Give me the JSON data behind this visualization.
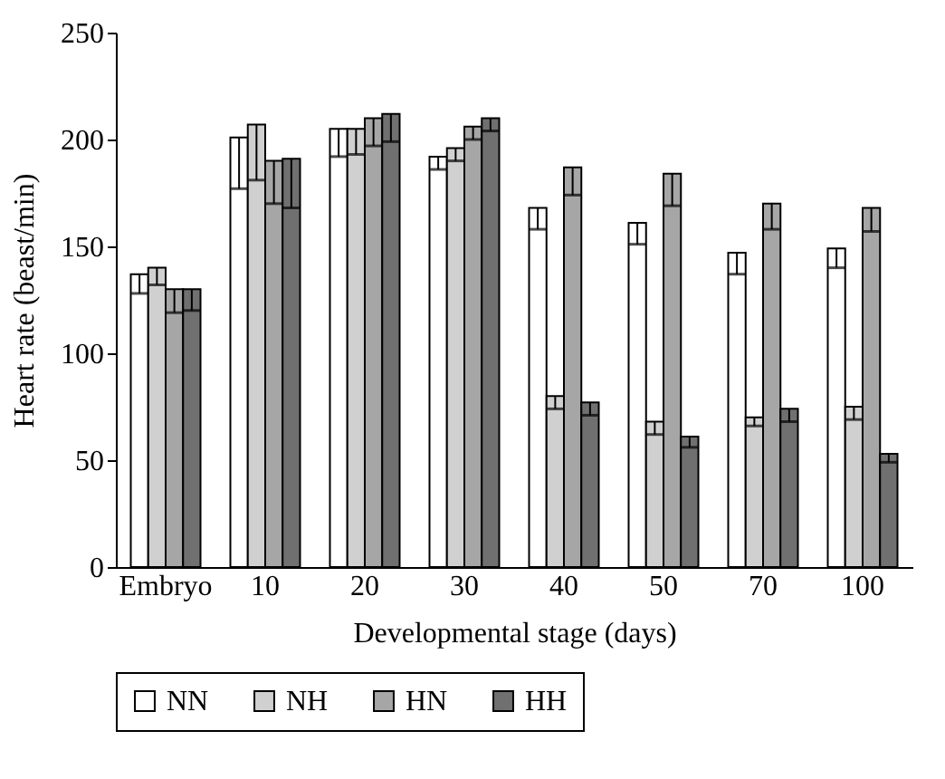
{
  "chart_data": {
    "type": "bar",
    "xlabel": "Developmental stage (days)",
    "ylabel": "Heart rate (beast/min)",
    "categories": [
      "Embryo",
      "10",
      "20",
      "30",
      "40",
      "50",
      "70",
      "100"
    ],
    "series": [
      {
        "name": "NN",
        "color": "#ffffff",
        "values": [
          137,
          201,
          205,
          192,
          168,
          161,
          147,
          149
        ],
        "errors": [
          [
            128,
            137
          ],
          [
            177,
            201
          ],
          [
            192,
            205
          ],
          [
            186,
            192
          ],
          [
            158,
            168
          ],
          [
            151,
            161
          ],
          [
            137,
            147
          ],
          [
            140,
            149
          ]
        ]
      },
      {
        "name": "NH",
        "color": "#d0d0d0",
        "values": [
          140,
          207,
          205,
          196,
          80,
          68,
          70,
          75
        ],
        "errors": [
          [
            132,
            140
          ],
          [
            181,
            207
          ],
          [
            193,
            205
          ],
          [
            190,
            196
          ],
          [
            74,
            80
          ],
          [
            62,
            68
          ],
          [
            66,
            70
          ],
          [
            69,
            75
          ]
        ]
      },
      {
        "name": "HN",
        "color": "#a6a6a6",
        "values": [
          130,
          190,
          210,
          206,
          187,
          184,
          170,
          168
        ],
        "errors": [
          [
            119,
            130
          ],
          [
            170,
            190
          ],
          [
            197,
            210
          ],
          [
            200,
            206
          ],
          [
            174,
            187
          ],
          [
            169,
            184
          ],
          [
            158,
            170
          ],
          [
            157,
            168
          ]
        ]
      },
      {
        "name": "HH",
        "color": "#707070",
        "values": [
          130,
          191,
          212,
          210,
          77,
          61,
          74,
          53
        ],
        "errors": [
          [
            120,
            130
          ],
          [
            168,
            191
          ],
          [
            199,
            212
          ],
          [
            204,
            210
          ],
          [
            71,
            77
          ],
          [
            56,
            61
          ],
          [
            68,
            74
          ],
          [
            49,
            53
          ]
        ]
      }
    ],
    "ylim": [
      0,
      250
    ],
    "yticks": [
      0,
      50,
      100,
      150,
      200,
      250
    ],
    "grid": false,
    "legend": "bottom"
  }
}
